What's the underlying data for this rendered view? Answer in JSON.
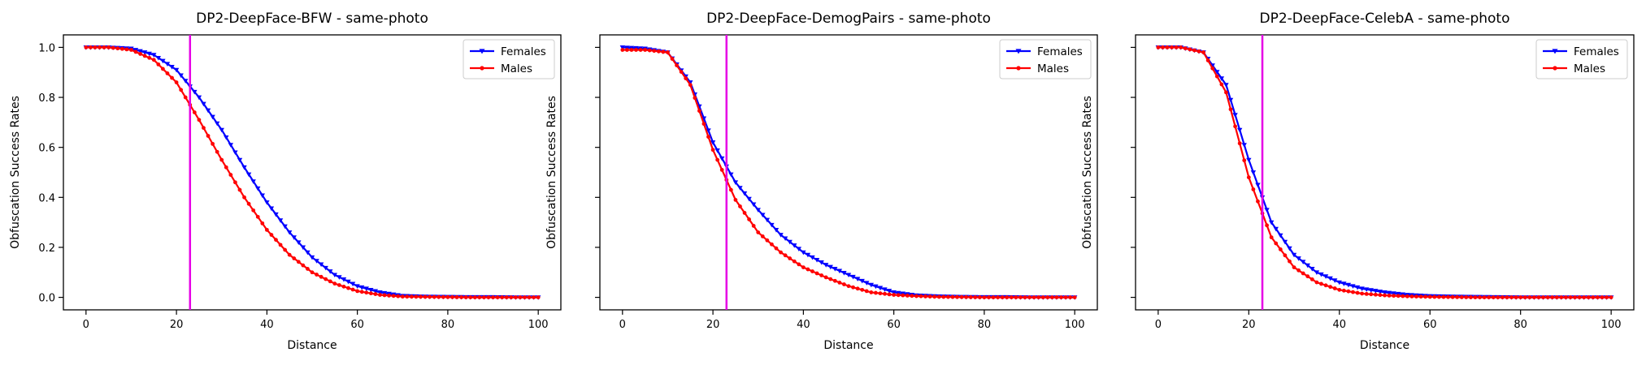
{
  "chart_data": [
    {
      "type": "line",
      "title": "DP2-DeepFace-BFW - same-photo",
      "xlabel": "Distance",
      "ylabel": "Obfuscation Success Rates",
      "xlim": [
        -5,
        105
      ],
      "ylim": [
        -0.05,
        1.05
      ],
      "xticks": [
        "0",
        "20",
        "40",
        "60",
        "80",
        "100"
      ],
      "yticks": [
        "0.0",
        "0.2",
        "0.4",
        "0.6",
        "0.8",
        "1.0"
      ],
      "vline_x": 23,
      "legend_position": "top-right",
      "series": [
        {
          "name": "Females",
          "color": "#0000ff",
          "marker": "triangle-down",
          "x": [
            0,
            5,
            10,
            15,
            20,
            25,
            30,
            35,
            40,
            45,
            50,
            55,
            60,
            65,
            70,
            75,
            80,
            85,
            90,
            95,
            100
          ],
          "y": [
            1.0,
            1.0,
            0.995,
            0.97,
            0.91,
            0.8,
            0.67,
            0.52,
            0.38,
            0.26,
            0.16,
            0.09,
            0.045,
            0.02,
            0.006,
            0.003,
            0.002,
            0.001,
            0.001,
            0.0,
            0.0
          ]
        },
        {
          "name": "Males",
          "color": "#ff0000",
          "marker": "circle",
          "x": [
            0,
            5,
            10,
            15,
            20,
            25,
            30,
            35,
            40,
            45,
            50,
            55,
            60,
            65,
            70,
            75,
            80,
            85,
            90,
            95,
            100
          ],
          "y": [
            1.0,
            1.0,
            0.99,
            0.95,
            0.86,
            0.71,
            0.55,
            0.4,
            0.27,
            0.17,
            0.1,
            0.055,
            0.025,
            0.01,
            0.003,
            0.002,
            0.001,
            0.0,
            0.0,
            0.0,
            0.0
          ]
        }
      ]
    },
    {
      "type": "line",
      "title": "DP2-DeepFace-DemogPairs - same-photo",
      "xlabel": "Distance",
      "ylabel": "Obfuscation Success Rates",
      "xlim": [
        -5,
        105
      ],
      "ylim": [
        -0.05,
        1.05
      ],
      "xticks": [
        "0",
        "20",
        "40",
        "60",
        "80",
        "100"
      ],
      "yticks": [],
      "vline_x": 23,
      "legend_position": "top-right",
      "series": [
        {
          "name": "Females",
          "color": "#0000ff",
          "marker": "triangle-down",
          "x": [
            0,
            5,
            10,
            15,
            20,
            25,
            30,
            35,
            40,
            45,
            50,
            55,
            60,
            65,
            70,
            75,
            80,
            85,
            90,
            95,
            100
          ],
          "y": [
            1.0,
            0.995,
            0.98,
            0.86,
            0.62,
            0.46,
            0.35,
            0.25,
            0.18,
            0.13,
            0.09,
            0.05,
            0.02,
            0.008,
            0.004,
            0.002,
            0.001,
            0.001,
            0.0,
            0.0,
            0.0
          ]
        },
        {
          "name": "Males",
          "color": "#ff0000",
          "marker": "circle",
          "x": [
            0,
            5,
            10,
            15,
            20,
            25,
            30,
            35,
            40,
            45,
            50,
            55,
            60,
            65,
            70,
            75,
            80,
            85,
            90,
            95,
            100
          ],
          "y": [
            0.99,
            0.99,
            0.98,
            0.85,
            0.59,
            0.39,
            0.26,
            0.18,
            0.12,
            0.08,
            0.045,
            0.02,
            0.01,
            0.005,
            0.002,
            0.001,
            0.0,
            0.0,
            0.0,
            0.0,
            0.0
          ]
        }
      ]
    },
    {
      "type": "line",
      "title": "DP2-DeepFace-CelebA - same-photo",
      "xlabel": "Distance",
      "ylabel": "Obfuscation Success Rates",
      "xlim": [
        -5,
        105
      ],
      "ylim": [
        -0.05,
        1.05
      ],
      "xticks": [
        "0",
        "20",
        "40",
        "60",
        "80",
        "100"
      ],
      "yticks": [],
      "vline_x": 23,
      "legend_position": "top-right",
      "series": [
        {
          "name": "Females",
          "color": "#0000ff",
          "marker": "triangle-down",
          "x": [
            0,
            5,
            10,
            15,
            20,
            25,
            30,
            35,
            40,
            45,
            50,
            55,
            60,
            65,
            70,
            75,
            80,
            85,
            90,
            95,
            100
          ],
          "y": [
            1.0,
            1.0,
            0.98,
            0.85,
            0.55,
            0.3,
            0.17,
            0.1,
            0.06,
            0.035,
            0.02,
            0.01,
            0.005,
            0.003,
            0.002,
            0.001,
            0.0,
            0.0,
            0.0,
            0.0,
            0.0
          ]
        },
        {
          "name": "Males",
          "color": "#ff0000",
          "marker": "circle",
          "x": [
            0,
            5,
            10,
            15,
            20,
            25,
            30,
            35,
            40,
            45,
            50,
            55,
            60,
            65,
            70,
            75,
            80,
            85,
            90,
            95,
            100
          ],
          "y": [
            1.0,
            1.0,
            0.98,
            0.82,
            0.48,
            0.24,
            0.12,
            0.06,
            0.03,
            0.015,
            0.008,
            0.004,
            0.002,
            0.001,
            0.0,
            0.0,
            0.0,
            0.0,
            0.0,
            0.0,
            0.0
          ]
        }
      ]
    }
  ],
  "vline_color": "#e600e6"
}
